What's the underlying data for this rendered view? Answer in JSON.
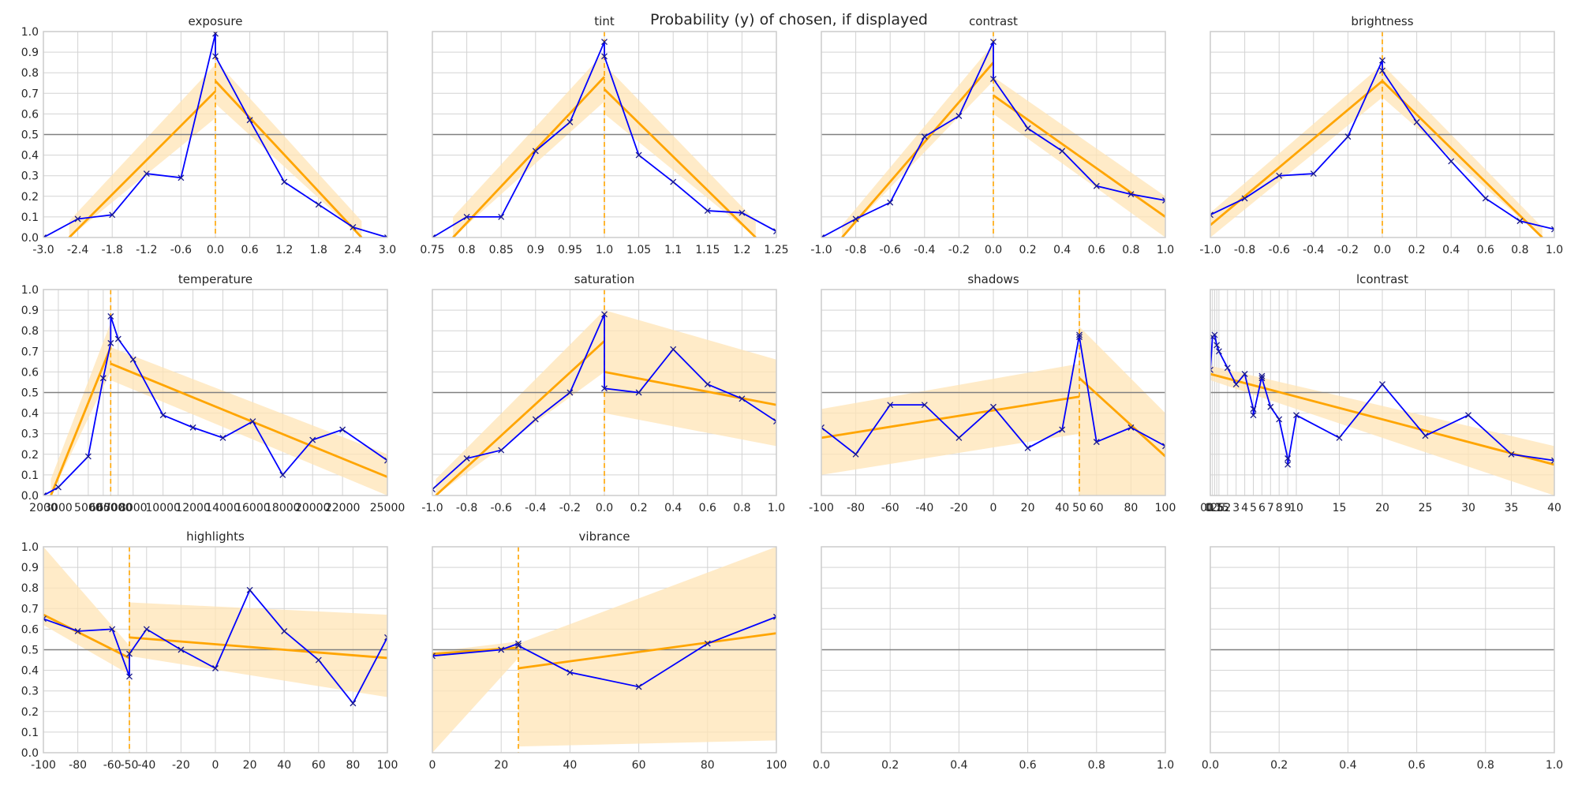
{
  "suptitle": "Probability (y) of chosen, if displayed",
  "chart_data": [
    {
      "type": "line",
      "title": "exposure",
      "xlim": [
        -3.0,
        3.0
      ],
      "ylim": [
        0,
        1
      ],
      "xticks": [
        -3.0,
        -2.4,
        -1.8,
        -1.2,
        -0.6,
        0.0,
        0.6,
        1.2,
        1.8,
        2.4,
        3.0
      ],
      "xticklabels": [
        "-3.0",
        "-2.4",
        "-1.8",
        "-1.2",
        "-0.6",
        "0.0",
        "0.6",
        "1.2",
        "1.8",
        "2.4",
        "3.0"
      ],
      "series": [
        {
          "type": "observed",
          "x": [
            -3.0,
            -2.4,
            -1.8,
            -1.2,
            -0.6,
            0.0,
            0.0,
            0.6,
            1.2,
            1.8,
            2.4,
            3.0
          ],
          "y": [
            0.0,
            0.09,
            0.11,
            0.31,
            0.29,
            0.99,
            0.88,
            0.57,
            0.27,
            0.16,
            0.05,
            0.0
          ]
        }
      ],
      "fit_left": {
        "x": [
          -2.55,
          0.0
        ],
        "y": [
          0.0,
          0.71
        ],
        "band_low": [
          0.0,
          0.58
        ],
        "band_high": [
          0.08,
          0.84
        ]
      },
      "fit_right": {
        "x": [
          0.0,
          2.55
        ],
        "y": [
          0.76,
          0.0
        ],
        "band_low": [
          0.65,
          0.0
        ],
        "band_high": [
          0.86,
          0.08
        ]
      },
      "threshold": 0.0,
      "hline": 0.5
    },
    {
      "type": "line",
      "title": "tint",
      "xlim": [
        0.75,
        1.25
      ],
      "ylim": [
        0,
        1
      ],
      "xticks": [
        0.75,
        0.8,
        0.85,
        0.9,
        0.95,
        1.0,
        1.05,
        1.1,
        1.15,
        1.2,
        1.25
      ],
      "xticklabels": [
        "0.75",
        "0.8",
        "0.85",
        "0.9",
        "0.95",
        "1.0",
        "1.05",
        "1.1",
        "1.15",
        "1.2",
        "1.25"
      ],
      "series": [
        {
          "type": "observed",
          "x": [
            0.75,
            0.8,
            0.85,
            0.9,
            0.95,
            1.0,
            1.0,
            1.05,
            1.1,
            1.15,
            1.2,
            1.25
          ],
          "y": [
            0.0,
            0.1,
            0.1,
            0.42,
            0.56,
            0.95,
            0.88,
            0.4,
            0.27,
            0.13,
            0.12,
            0.03
          ]
        }
      ],
      "fit_left": {
        "x": [
          0.78,
          1.0
        ],
        "y": [
          0.0,
          0.78
        ],
        "band_low": [
          0.0,
          0.66
        ],
        "band_high": [
          0.1,
          0.9
        ]
      },
      "fit_right": {
        "x": [
          1.0,
          1.22
        ],
        "y": [
          0.72,
          0.0
        ],
        "band_low": [
          0.6,
          0.0
        ],
        "band_high": [
          0.84,
          0.08
        ]
      },
      "threshold": 1.0,
      "hline": 0.5
    },
    {
      "type": "line",
      "title": "contrast",
      "xlim": [
        -1.0,
        1.0
      ],
      "ylim": [
        0,
        1
      ],
      "xticks": [
        -1.0,
        -0.8,
        -0.6,
        -0.4,
        -0.2,
        0.0,
        0.2,
        0.4,
        0.6,
        0.8,
        1.0
      ],
      "xticklabels": [
        "-1.0",
        "-0.8",
        "-0.6",
        "-0.4",
        "-0.2",
        "0.0",
        "0.2",
        "0.4",
        "0.6",
        "0.8",
        "1.0"
      ],
      "series": [
        {
          "type": "observed",
          "x": [
            -1.0,
            -0.8,
            -0.6,
            -0.4,
            -0.2,
            0.0,
            0.0,
            0.2,
            0.4,
            0.6,
            0.8,
            1.0
          ],
          "y": [
            0.0,
            0.09,
            0.17,
            0.49,
            0.59,
            0.95,
            0.77,
            0.53,
            0.42,
            0.25,
            0.21,
            0.18
          ]
        }
      ],
      "fit_left": {
        "x": [
          -0.88,
          0.0
        ],
        "y": [
          0.0,
          0.85
        ],
        "band_low": [
          0.0,
          0.76
        ],
        "band_high": [
          0.06,
          0.94
        ]
      },
      "fit_right": {
        "x": [
          0.0,
          1.0
        ],
        "y": [
          0.69,
          0.1
        ],
        "band_low": [
          0.6,
          0.0
        ],
        "band_high": [
          0.78,
          0.2
        ]
      },
      "threshold": 0.0,
      "hline": 0.5
    },
    {
      "type": "line",
      "title": "brightness",
      "xlim": [
        -1.0,
        1.0
      ],
      "ylim": [
        0,
        1
      ],
      "xticks": [
        -1.0,
        -0.8,
        -0.6,
        -0.4,
        -0.2,
        0.0,
        0.2,
        0.4,
        0.6,
        0.8,
        1.0
      ],
      "xticklabels": [
        "-1.0",
        "-0.8",
        "-0.6",
        "-0.4",
        "-0.2",
        "0.0",
        "0.2",
        "0.4",
        "0.6",
        "0.8",
        "1.0"
      ],
      "series": [
        {
          "type": "observed",
          "x": [
            -1.0,
            -0.8,
            -0.6,
            -0.4,
            -0.2,
            0.0,
            0.0,
            0.2,
            0.4,
            0.6,
            0.8,
            1.0
          ],
          "y": [
            0.11,
            0.19,
            0.3,
            0.31,
            0.49,
            0.86,
            0.81,
            0.56,
            0.37,
            0.19,
            0.08,
            0.04
          ]
        }
      ],
      "fit_left": {
        "x": [
          -1.0,
          0.0
        ],
        "y": [
          0.06,
          0.76
        ],
        "band_low": [
          0.0,
          0.68
        ],
        "band_high": [
          0.12,
          0.84
        ]
      },
      "fit_right": {
        "x": [
          0.0,
          0.93
        ],
        "y": [
          0.76,
          0.0
        ],
        "band_low": [
          0.68,
          0.0
        ],
        "band_high": [
          0.84,
          0.05
        ]
      },
      "threshold": 0.0,
      "hline": 0.5
    },
    {
      "type": "line",
      "title": "temperature",
      "xlim": [
        2000,
        25000
      ],
      "ylim": [
        0,
        1
      ],
      "xticks": [
        2000,
        3000,
        5000,
        6000,
        6500,
        7000,
        8000,
        10000,
        12000,
        14000,
        16000,
        18000,
        20000,
        22000,
        25000
      ],
      "xticklabels": [
        "2000",
        "3000",
        "5000",
        "6000",
        "6500",
        "7000",
        "8000",
        "10000",
        "12000",
        "14000",
        "16000",
        "18000",
        "20000",
        "22000",
        "25000"
      ],
      "series": [
        {
          "type": "observed",
          "x": [
            2000,
            3000,
            5000,
            6000,
            6500,
            6500,
            7000,
            8000,
            10000,
            12000,
            14000,
            16000,
            18000,
            20000,
            22000,
            25000
          ],
          "y": [
            0.0,
            0.04,
            0.19,
            0.57,
            0.74,
            0.87,
            0.76,
            0.66,
            0.39,
            0.33,
            0.28,
            0.36,
            0.1,
            0.27,
            0.32,
            0.17
          ]
        }
      ],
      "fit_left": {
        "x": [
          2500,
          6500
        ],
        "y": [
          0.0,
          0.72
        ],
        "band_low": [
          0.0,
          0.6
        ],
        "band_high": [
          0.08,
          0.84
        ]
      },
      "fit_right": {
        "x": [
          6500,
          25000
        ],
        "y": [
          0.64,
          0.09
        ],
        "band_low": [
          0.56,
          0.0
        ],
        "band_high": [
          0.72,
          0.2
        ]
      },
      "threshold": 6500,
      "hline": 0.5
    },
    {
      "type": "line",
      "title": "saturation",
      "xlim": [
        -1.0,
        1.0
      ],
      "ylim": [
        0,
        1
      ],
      "xticks": [
        -1.0,
        -0.8,
        -0.6,
        -0.4,
        -0.2,
        0.0,
        0.2,
        0.4,
        0.6,
        0.8,
        1.0
      ],
      "xticklabels": [
        "-1.0",
        "-0.8",
        "-0.6",
        "-0.4",
        "-0.2",
        "0.0",
        "0.2",
        "0.4",
        "0.6",
        "0.8",
        "1.0"
      ],
      "series": [
        {
          "type": "observed",
          "x": [
            -1.0,
            -0.8,
            -0.6,
            -0.4,
            -0.2,
            0.0,
            0.0,
            0.2,
            0.4,
            0.6,
            0.8,
            1.0
          ],
          "y": [
            0.03,
            0.18,
            0.22,
            0.37,
            0.5,
            0.88,
            0.52,
            0.5,
            0.71,
            0.54,
            0.47,
            0.36
          ]
        }
      ],
      "fit_left": {
        "x": [
          -0.98,
          0.0
        ],
        "y": [
          0.0,
          0.75
        ],
        "band_low": [
          0.0,
          0.6
        ],
        "band_high": [
          0.08,
          0.9
        ]
      },
      "fit_right": {
        "x": [
          0.0,
          1.0
        ],
        "y": [
          0.6,
          0.44
        ],
        "band_low": [
          0.4,
          0.24
        ],
        "band_high": [
          0.9,
          0.66
        ]
      },
      "threshold": 0.0,
      "hline": 0.5
    },
    {
      "type": "line",
      "title": "shadows",
      "xlim": [
        -100,
        100
      ],
      "ylim": [
        0,
        1
      ],
      "xticks": [
        -100,
        -80,
        -60,
        -40,
        -20,
        0,
        20,
        40,
        50,
        60,
        80,
        100
      ],
      "xticklabels": [
        "-100",
        "-80",
        "-60",
        "-40",
        "-20",
        "0",
        "20",
        "40",
        "50",
        "60",
        "80",
        "100"
      ],
      "series": [
        {
          "type": "observed",
          "x": [
            -100,
            -80,
            -60,
            -40,
            -20,
            0,
            20,
            40,
            50,
            50,
            60,
            80,
            100
          ],
          "y": [
            0.33,
            0.2,
            0.44,
            0.44,
            0.28,
            0.43,
            0.23,
            0.32,
            0.78,
            0.77,
            0.26,
            0.33,
            0.24
          ]
        }
      ],
      "fit_left": {
        "x": [
          -100,
          50
        ],
        "y": [
          0.28,
          0.48
        ],
        "band_low": [
          0.1,
          0.3
        ],
        "band_high": [
          0.42,
          0.64
        ]
      },
      "fit_right": {
        "x": [
          50,
          100
        ],
        "y": [
          0.57,
          0.19
        ],
        "band_low": [
          0.0,
          0.0
        ],
        "band_high": [
          0.82,
          0.4
        ]
      },
      "threshold": 50,
      "hline": 0.5
    },
    {
      "type": "line",
      "title": "lcontrast",
      "xlim": [
        0,
        40
      ],
      "ylim": [
        0,
        1
      ],
      "xticks": [
        0,
        0.25,
        0.5,
        0.75,
        1,
        2,
        3,
        4,
        5,
        6,
        7,
        8,
        9,
        10,
        15,
        20,
        25,
        30,
        35,
        40
      ],
      "xticklabels": [
        "0",
        "0.25",
        "0.5",
        "0.75",
        "1",
        "2",
        "3",
        "4",
        "5",
        "6",
        "7",
        "8",
        "9",
        "10",
        "15",
        "20",
        "25",
        "30",
        "35",
        "40"
      ],
      "series": [
        {
          "type": "observed",
          "x": [
            0,
            0.25,
            0.5,
            0.75,
            1,
            2,
            3,
            4,
            5,
            5,
            6,
            6,
            7,
            8,
            9,
            9,
            10,
            15,
            20,
            25,
            30,
            35,
            40
          ],
          "y": [
            0.61,
            0.77,
            0.78,
            0.73,
            0.7,
            0.62,
            0.54,
            0.59,
            0.42,
            0.39,
            0.58,
            0.57,
            0.43,
            0.37,
            0.18,
            0.15,
            0.39,
            0.28,
            0.54,
            0.29,
            0.39,
            0.2,
            0.17
          ]
        }
      ],
      "fit_right": {
        "x": [
          0,
          40
        ],
        "y": [
          0.59,
          0.15
        ],
        "band_low": [
          0.56,
          0.0
        ],
        "band_high": [
          0.63,
          0.24
        ]
      },
      "hline": 0.5
    },
    {
      "type": "line",
      "title": "highlights",
      "xlim": [
        -100,
        100
      ],
      "ylim": [
        0,
        1
      ],
      "xticks": [
        -100,
        -80,
        -60,
        -50,
        -40,
        -20,
        0,
        20,
        40,
        60,
        80,
        100
      ],
      "xticklabels": [
        "-100",
        "-80",
        "-60",
        "-50",
        "-40",
        "-20",
        "0",
        "20",
        "40",
        "60",
        "80",
        "100"
      ],
      "series": [
        {
          "type": "observed",
          "x": [
            -100,
            -80,
            -60,
            -50,
            -50,
            -40,
            -20,
            0,
            20,
            40,
            60,
            80,
            100
          ],
          "y": [
            0.65,
            0.59,
            0.6,
            0.37,
            0.48,
            0.6,
            0.5,
            0.41,
            0.79,
            0.59,
            0.45,
            0.24,
            0.56
          ]
        }
      ],
      "fit_left": {
        "x": [
          -100,
          -50
        ],
        "y": [
          0.67,
          0.46
        ],
        "band_low": [
          0.62,
          0.38
        ],
        "band_high": [
          1.0,
          0.52
        ]
      },
      "fit_right": {
        "x": [
          -50,
          100
        ],
        "y": [
          0.56,
          0.46
        ],
        "band_low": [
          0.47,
          0.27
        ],
        "band_high": [
          0.73,
          0.67
        ]
      },
      "threshold": -50,
      "hline": 0.5
    },
    {
      "type": "line",
      "title": "vibrance",
      "xlim": [
        0,
        100
      ],
      "ylim": [
        0,
        1
      ],
      "xticks": [
        0,
        20,
        40,
        60,
        80,
        100
      ],
      "xticklabels": [
        "0",
        "20",
        "40",
        "60",
        "80",
        "100"
      ],
      "series": [
        {
          "type": "observed",
          "x": [
            0,
            20,
            25,
            25,
            40,
            60,
            80,
            100
          ],
          "y": [
            0.47,
            0.5,
            0.53,
            0.52,
            0.39,
            0.32,
            0.53,
            0.66
          ]
        }
      ],
      "fit_left": {
        "x": [
          0,
          25
        ],
        "y": [
          0.48,
          0.51
        ],
        "band_low": [
          0.0,
          0.46
        ],
        "band_high": [
          0.49,
          0.54
        ]
      },
      "fit_right": {
        "x": [
          25,
          100
        ],
        "y": [
          0.41,
          0.58
        ],
        "band_low": [
          0.03,
          0.06
        ],
        "band_high": [
          0.53,
          1.0
        ]
      },
      "threshold": 25,
      "hline": 0.5
    },
    {
      "type": "line",
      "title": "",
      "empty": true,
      "xlim": [
        0,
        1
      ],
      "ylim": [
        0,
        1
      ],
      "xticks": [
        0,
        0.2,
        0.4,
        0.6,
        0.8,
        1.0
      ],
      "xticklabels": [
        "0.0",
        "0.2",
        "0.4",
        "0.6",
        "0.8",
        "1.0"
      ],
      "hline": 0.5
    },
    {
      "type": "line",
      "title": "",
      "empty": true,
      "xlim": [
        0,
        1
      ],
      "ylim": [
        0,
        1
      ],
      "xticks": [
        0,
        0.2,
        0.4,
        0.6,
        0.8,
        1.0
      ],
      "xticklabels": [
        "0.0",
        "0.2",
        "0.4",
        "0.6",
        "0.8",
        "1.0"
      ],
      "hline": 0.5
    }
  ],
  "yticklabels": [
    "0.0",
    "0.1",
    "0.2",
    "0.3",
    "0.4",
    "0.5",
    "0.6",
    "0.7",
    "0.8",
    "0.9",
    "1.0"
  ],
  "colors": {
    "observed": "#0000ff",
    "fit": "#ffa500",
    "band": "#ffe4b5",
    "hline": "#808080",
    "grid": "#d3d3d3",
    "spine": "#cccccc"
  }
}
